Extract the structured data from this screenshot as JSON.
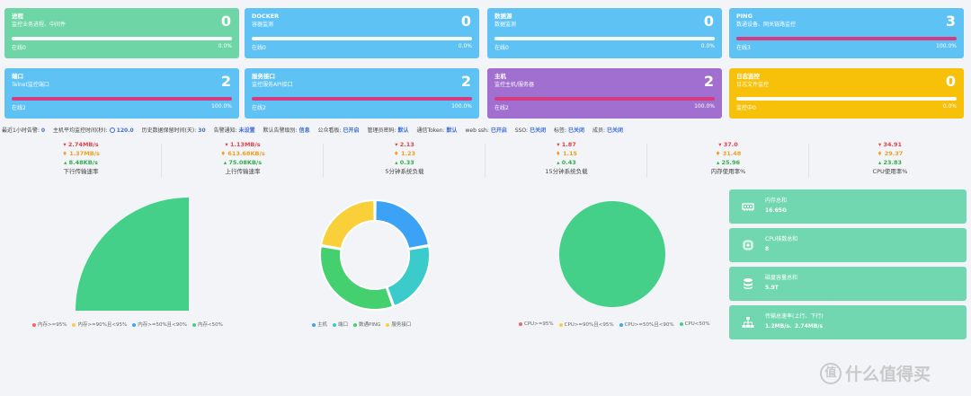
{
  "cards": [
    {
      "title": "进程",
      "subtitle": "监控业务进程、中间件",
      "count": "0",
      "online": "在线0",
      "percent": "0.0%",
      "progress": 0
    },
    {
      "title": "DOCKER",
      "subtitle": "容器监测",
      "count": "0",
      "online": "在线0",
      "percent": "0.0%",
      "progress": 0
    },
    {
      "title": "数据源",
      "subtitle": "数据监测",
      "count": "0",
      "online": "在线0",
      "percent": "0.0%",
      "progress": 0
    },
    {
      "title": "PING",
      "subtitle": "数通设备、网关链路监控",
      "count": "3",
      "online": "在线3",
      "percent": "100.0%",
      "progress": 100
    },
    {
      "title": "端口",
      "subtitle": "Telnet监控端口",
      "count": "2",
      "online": "在线2",
      "percent": "100.0%",
      "progress": 100
    },
    {
      "title": "服务接口",
      "subtitle": "监控服务API接口",
      "count": "2",
      "online": "在线2",
      "percent": "100.0%",
      "progress": 100
    },
    {
      "title": "主机",
      "subtitle": "监控主机/服务器",
      "count": "2",
      "online": "在线2",
      "percent": "100.0%",
      "progress": 100
    },
    {
      "title": "日志监控",
      "subtitle": "日志文件监控",
      "count": "0",
      "online": "监控中0",
      "percent": "0.0%",
      "progress": 0
    }
  ],
  "infobar": {
    "alarms_label": "最近1小时告警:",
    "alarms_value": "0",
    "interval_label": "主机平均监控时间(秒):",
    "interval_value": "120.0",
    "retention_label": "历史数据保留时间(天):",
    "retention_value": "30",
    "notify_label": "告警通知:",
    "notify_value": "未设置",
    "level_label": "默认告警级别:",
    "level_value": "信息",
    "public_label": "公众看板:",
    "public_value": "已开启",
    "admin_label": "管理员密码:",
    "admin_value": "默认",
    "token_label": "通信Token:",
    "token_value": "默认",
    "ssh_label": "web ssh:",
    "ssh_value": "已开启",
    "sso_label": "SSO:",
    "sso_value": "已关闭",
    "tag_label": "标签:",
    "tag_value": "已关闭",
    "member_label": "成员:",
    "member_value": "已关闭"
  },
  "stats": [
    {
      "max": "2.74MB/s",
      "avg": "1.37MB/s",
      "min": "8.48KB/s",
      "label": "下行传输速率"
    },
    {
      "max": "1.13MB/s",
      "avg": "613.68KB/s",
      "min": "75.08KB/s",
      "label": "上行传输速率"
    },
    {
      "max": "2.13",
      "avg": "1.23",
      "min": "0.33",
      "label": "5分钟系统负载"
    },
    {
      "max": "1.87",
      "avg": "1.15",
      "min": "0.43",
      "label": "15分钟系统负载"
    },
    {
      "max": "37.0",
      "avg": "31.48",
      "min": "25.96",
      "label": "内存使用率%"
    },
    {
      "max": "34.91",
      "avg": "29.37",
      "min": "23.83",
      "label": "CPU使用率%"
    }
  ],
  "chart_data": [
    {
      "type": "pie",
      "title": "",
      "categories": [
        "内存>=95%",
        "内存>=90%且<95%",
        "内存>=50%且<90%",
        "内存<50%"
      ],
      "values": [
        0,
        0,
        0,
        2
      ],
      "colors": [
        "#ee6666",
        "#fac858",
        "#3ba6f5",
        "#45d08a"
      ]
    },
    {
      "type": "pie",
      "title": "监控资源总数量",
      "total": "9",
      "categories": [
        "主机",
        "端口",
        "数通PING",
        "服务接口"
      ],
      "values": [
        2,
        2,
        3,
        2
      ],
      "colors": [
        "#3ba2f5",
        "#3bcbcb",
        "#45d06f",
        "#fad03a"
      ]
    },
    {
      "type": "pie",
      "title": "",
      "categories": [
        "CPU>=95%",
        "CPU>=90%且<95%",
        "CPU>=50%且<90%",
        "CPU<50%"
      ],
      "values": [
        0,
        0,
        0,
        2
      ],
      "colors": [
        "#ee6666",
        "#fac858",
        "#3ba6f5",
        "#45d08a"
      ]
    }
  ],
  "side": [
    {
      "title": "内存总和",
      "value": "16.65G",
      "icon": "memory-icon"
    },
    {
      "title": "CPU核数总和",
      "value": "8",
      "icon": "cpu-icon"
    },
    {
      "title": "磁盘容量总和",
      "value": "5.9T",
      "icon": "database-icon"
    },
    {
      "title": "传输总速率(上行、下行)",
      "value": "1.2MB/s、2.74MB/s",
      "icon": "network-icon"
    }
  ],
  "watermark": {
    "glyph": "值",
    "text": "什么值得买"
  },
  "colors": {
    "green": "#6dd5a6",
    "blue": "#5ec2f5",
    "purple": "#a16fd0",
    "yellow": "#f7c10a",
    "progress": "#d63a7f"
  }
}
